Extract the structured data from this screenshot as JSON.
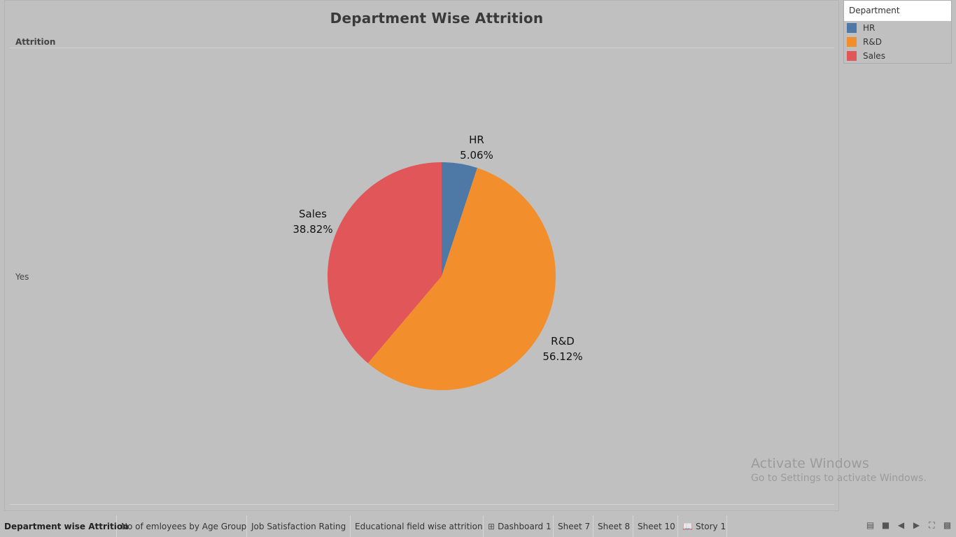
{
  "chart": {
    "title": "Department Wise Attrition",
    "row_header": "Attrition",
    "row_value": "Yes"
  },
  "legend": {
    "title": "Department",
    "items": [
      {
        "label": "HR",
        "color": "#4e79a7"
      },
      {
        "label": "R&D",
        "color": "#f28e2b"
      },
      {
        "label": "Sales",
        "color": "#e15759"
      }
    ]
  },
  "chart_data": {
    "type": "pie",
    "title": "Department Wise Attrition",
    "slices": [
      {
        "name": "HR",
        "value": 5.06,
        "label": "5.06%",
        "color": "#4e79a7"
      },
      {
        "name": "R&D",
        "value": 56.12,
        "label": "56.12%",
        "color": "#f28e2b"
      },
      {
        "name": "Sales",
        "value": 38.82,
        "label": "38.82%",
        "color": "#e15759"
      }
    ]
  },
  "watermark": {
    "line1": "Activate Windows",
    "line2": "Go to Settings to activate Windows."
  },
  "tabs": [
    {
      "label": "Department wise  Attrition",
      "active": true,
      "icon": ""
    },
    {
      "label": "No of emloyees by Age Group",
      "active": false,
      "icon": ""
    },
    {
      "label": "Job Satisfaction Rating",
      "active": false,
      "icon": ""
    },
    {
      "label": "Educational field wise attrition",
      "active": false,
      "icon": ""
    },
    {
      "label": "Dashboard 1",
      "active": false,
      "icon": "dashboard-icon"
    },
    {
      "label": "Sheet 7",
      "active": false,
      "icon": ""
    },
    {
      "label": "Sheet 8",
      "active": false,
      "icon": ""
    },
    {
      "label": "Sheet 10",
      "active": false,
      "icon": ""
    },
    {
      "label": "Story 1",
      "active": false,
      "icon": "story-icon"
    }
  ]
}
